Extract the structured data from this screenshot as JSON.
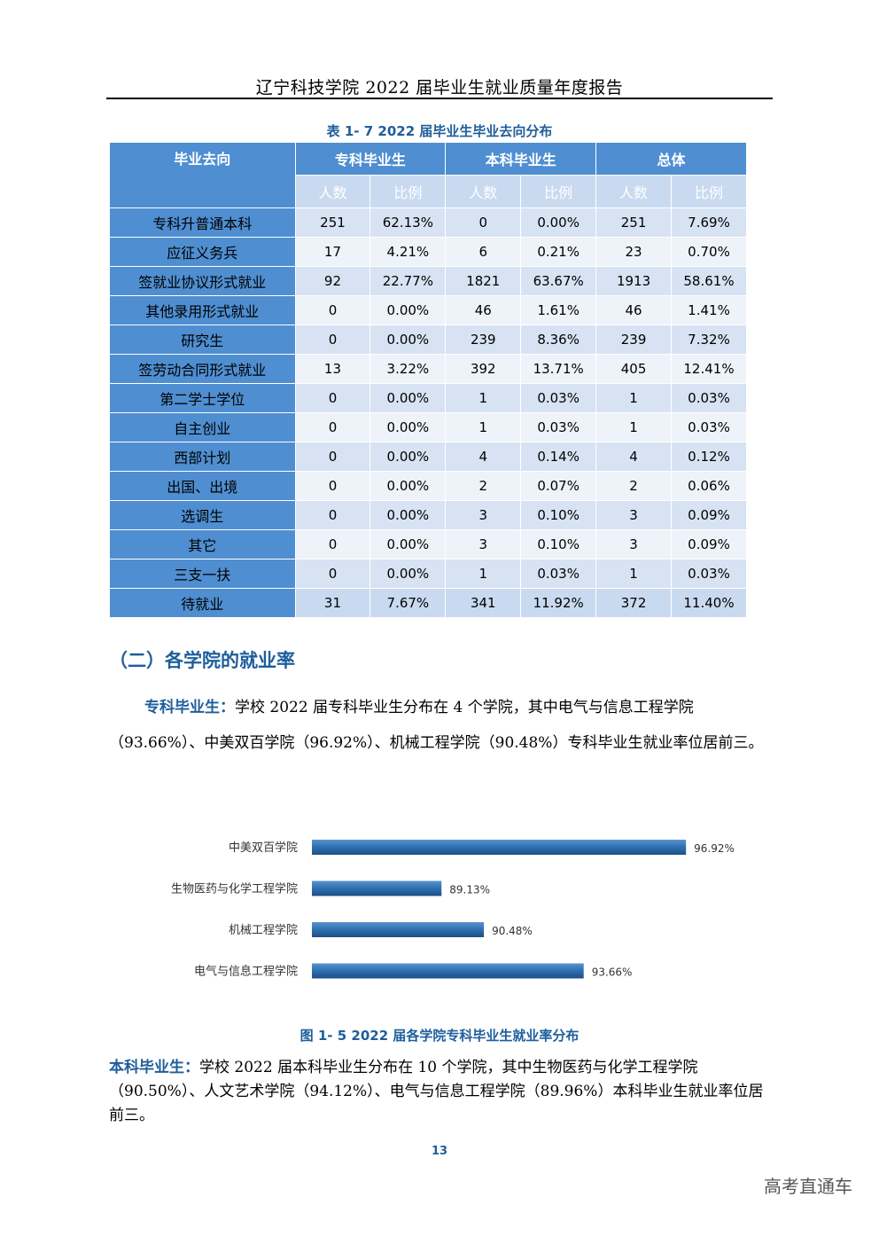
{
  "header": {
    "title": "辽宁科技学院 2022 届毕业生就业质量年度报告"
  },
  "table": {
    "caption": "表 1- 7   2022 届毕业生毕业去向分布",
    "col_group_headers": [
      "毕业去向",
      "专科毕业生",
      "本科毕业生",
      "总体"
    ],
    "sub_headers": [
      "人数",
      "比例",
      "人数",
      "比例",
      "人数",
      "比例"
    ],
    "rows": [
      {
        "label": "专科升普通本科",
        "values": [
          "251",
          "62.13%",
          "0",
          "0.00%",
          "251",
          "7.69%"
        ]
      },
      {
        "label": "应征义务兵",
        "values": [
          "17",
          "4.21%",
          "6",
          "0.21%",
          "23",
          "0.70%"
        ]
      },
      {
        "label": "签就业协议形式就业",
        "values": [
          "92",
          "22.77%",
          "1821",
          "63.67%",
          "1913",
          "58.61%"
        ]
      },
      {
        "label": "其他录用形式就业",
        "values": [
          "0",
          "0.00%",
          "46",
          "1.61%",
          "46",
          "1.41%"
        ]
      },
      {
        "label": "研究生",
        "values": [
          "0",
          "0.00%",
          "239",
          "8.36%",
          "239",
          "7.32%"
        ]
      },
      {
        "label": "签劳动合同形式就业",
        "values": [
          "13",
          "3.22%",
          "392",
          "13.71%",
          "405",
          "12.41%"
        ]
      },
      {
        "label": "第二学士学位",
        "values": [
          "0",
          "0.00%",
          "1",
          "0.03%",
          "1",
          "0.03%"
        ]
      },
      {
        "label": "自主创业",
        "values": [
          "0",
          "0.00%",
          "1",
          "0.03%",
          "1",
          "0.03%"
        ]
      },
      {
        "label": "西部计划",
        "values": [
          "0",
          "0.00%",
          "4",
          "0.14%",
          "4",
          "0.12%"
        ]
      },
      {
        "label": "出国、出境",
        "values": [
          "0",
          "0.00%",
          "2",
          "0.07%",
          "2",
          "0.06%"
        ]
      },
      {
        "label": "选调生",
        "values": [
          "0",
          "0.00%",
          "3",
          "0.10%",
          "3",
          "0.09%"
        ]
      },
      {
        "label": "其它",
        "values": [
          "0",
          "0.00%",
          "3",
          "0.10%",
          "3",
          "0.09%"
        ]
      },
      {
        "label": "三支一扶",
        "values": [
          "0",
          "0.00%",
          "1",
          "0.03%",
          "1",
          "0.03%"
        ]
      },
      {
        "label": "待就业",
        "values": [
          "31",
          "7.67%",
          "341",
          "11.92%",
          "372",
          "11.40%"
        ]
      }
    ]
  },
  "section": {
    "title": "（二）各学院的就业率"
  },
  "para1": {
    "lead": "专科毕业生：",
    "text": "学校 2022 届专科毕业生分布在 4 个学院，其中电气与信息工程学院（93.66%）、中美双百学院（96.92%）、机械工程学院（90.48%）专科毕业生就业率位居前三。"
  },
  "chart_data": {
    "type": "bar",
    "orientation": "horizontal",
    "categories": [
      "中美双百学院",
      "生物医药与化学工程学院",
      "机械工程学院",
      "电气与信息工程学院"
    ],
    "values": [
      96.92,
      89.13,
      90.48,
      93.66
    ],
    "labels": [
      "96.92%",
      "89.13%",
      "90.48%",
      "93.66%"
    ],
    "axis_min": 85,
    "axis_max": 97,
    "bar_color": "#2e6fb0"
  },
  "figure": {
    "caption": "图 1- 5   2022 届各学院专科毕业生就业率分布"
  },
  "para2": {
    "lead": "本科毕业生：",
    "text": "学校 2022 届本科毕业生分布在 10 个学院，其中生物医药与化学工程学院（90.50%）、人文艺术学院（94.12%）、电气与信息工程学院（89.96%）本科毕业生就业率位居前三。"
  },
  "page_number": "13",
  "watermark": "高考直通车"
}
